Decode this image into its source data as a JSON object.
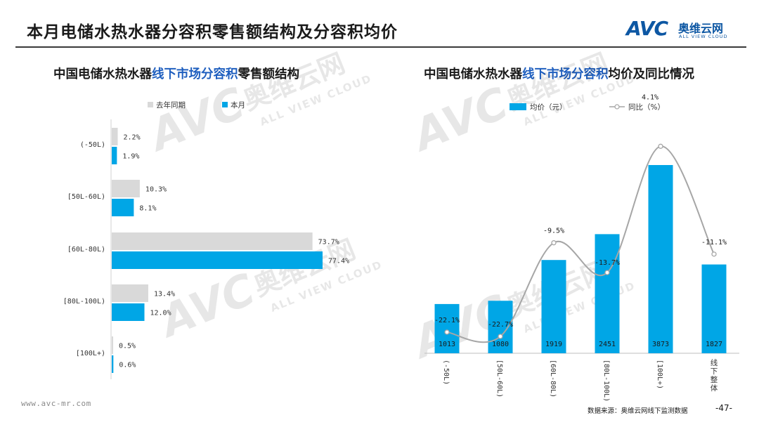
{
  "header": {
    "title": "本月电储水热水器分容积零售额结构及分容积均价",
    "brand_mark": "AVC",
    "brand_cn": "奥维云网",
    "brand_en": "ALL VIEW CLOUD"
  },
  "watermark": {
    "mark": "AVC",
    "cn": "奥维云网",
    "en": "ALL VIEW CLOUD"
  },
  "left_chart_title": {
    "pre": "中国电储水热水器",
    "highlight": "线下市场分容积",
    "post": "零售额结构"
  },
  "right_chart_title": {
    "pre": "中国电储水热水器",
    "highlight": "线下市场分容积",
    "post": "均价及同比情况"
  },
  "colors": {
    "blue": "#00a6e6",
    "gray": "#d9d9d9",
    "line": "#a6a6a6",
    "title_highlight": "#1f5fbf",
    "brand": "#0d57a3"
  },
  "chart_data": [
    {
      "type": "bar",
      "orientation": "horizontal",
      "title": "中国电储水热水器线下市场分容积零售额结构",
      "categories": [
        "(-50L)",
        "[50L-60L)",
        "[60L-80L)",
        "[80L-100L)",
        "[100L+)"
      ],
      "series": [
        {
          "name": "去年同期",
          "values": [
            2.2,
            10.3,
            73.7,
            13.4,
            0.5
          ],
          "labels": [
            "2.2%",
            "10.3%",
            "73.7%",
            "13.4%",
            "0.5%"
          ],
          "color": "#d9d9d9"
        },
        {
          "name": "本月",
          "values": [
            1.9,
            8.1,
            77.4,
            12.0,
            0.6
          ],
          "labels": [
            "1.9%",
            "8.1%",
            "77.4%",
            "12.0%",
            "0.6%"
          ],
          "color": "#00a6e6"
        }
      ],
      "legend": "top",
      "unit": "%"
    },
    {
      "type": "bar",
      "title": "中国电储水热水器线下市场分容积均价及同比情况",
      "categories": [
        "(-50L)",
        "[50L-60L)",
        "[60L-80L)",
        "[80L-100L)",
        "[100L+)",
        "线下整体"
      ],
      "series": [
        {
          "name": "均价（元）",
          "type": "bar",
          "values": [
            1013,
            1080,
            1919,
            2451,
            3873,
            1827
          ],
          "labels": [
            "1013",
            "1080",
            "1919",
            "2451",
            "3873",
            "1827"
          ],
          "color": "#00a6e6"
        },
        {
          "name": "同比（%）",
          "type": "line",
          "values": [
            -22.1,
            -22.7,
            -9.5,
            -13.7,
            4.1,
            -11.1
          ],
          "labels": [
            "-22.1%",
            "-22.7%",
            "-9.5%",
            "-13.7%",
            "4.1%",
            "-11.1%"
          ],
          "color": "#a6a6a6"
        }
      ],
      "legend": "top"
    }
  ],
  "footer": {
    "url": "www.avc-mr.com",
    "source": "数据来源：奥维云网线下监测数据",
    "page": "-47-"
  }
}
